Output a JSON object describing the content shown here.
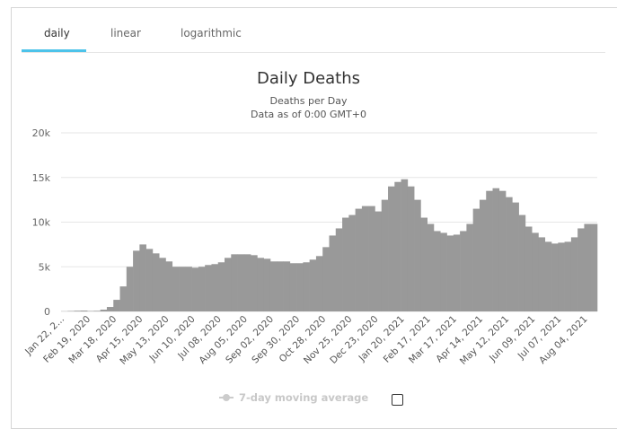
{
  "tabs": [
    {
      "label": "daily",
      "active": true
    },
    {
      "label": "linear",
      "active": false
    },
    {
      "label": "logarithmic",
      "active": false
    }
  ],
  "accent_color": "#4dc3ea",
  "legend": {
    "label": "7-day moving average",
    "enabled": false,
    "checkbox_checked": false
  },
  "chart_data": {
    "type": "bar",
    "title": "Daily Deaths",
    "subtitle": "Deaths per Day",
    "subtitle2": "Data as of 0:00 GMT+0",
    "xlabel": "",
    "ylabel": "",
    "ylim": [
      0,
      20000
    ],
    "yticks": [
      {
        "value": 0,
        "label": "0"
      },
      {
        "value": 5000,
        "label": "5k"
      },
      {
        "value": 10000,
        "label": "10k"
      },
      {
        "value": 15000,
        "label": "15k"
      },
      {
        "value": 20000,
        "label": "20k"
      }
    ],
    "grid": true,
    "bar_color": "#999999",
    "resolution_note_visible": false,
    "xtick_labels": [
      "Jan 22, 2...",
      "Feb 19, 2020",
      "Mar 18, 2020",
      "Apr 15, 2020",
      "May 13, 2020",
      "Jun 10, 2020",
      "Jul 08, 2020",
      "Aug 05, 2020",
      "Sep 02, 2020",
      "Sep 30, 2020",
      "Oct 28, 2020",
      "Nov 25, 2020",
      "Dec 23, 2020",
      "Jan 20, 2021",
      "Feb 17, 2021",
      "Mar 17, 2021",
      "Apr 14, 2021",
      "May 12, 2021",
      "Jun 09, 2021",
      "Jul 07, 2021",
      "Aug 04, 2021"
    ],
    "weeks_start": "Jan 22, 2020",
    "values": [
      20,
      50,
      80,
      100,
      50,
      70,
      200,
      500,
      1300,
      2800,
      5000,
      6800,
      7500,
      7000,
      6500,
      6000,
      5600,
      5000,
      5000,
      5000,
      4900,
      5000,
      5200,
      5300,
      5500,
      6000,
      6400,
      6400,
      6400,
      6300,
      6000,
      5900,
      5600,
      5600,
      5600,
      5400,
      5400,
      5500,
      5800,
      6200,
      7200,
      8500,
      9300,
      10500,
      10800,
      11500,
      11800,
      11800,
      11200,
      12500,
      14000,
      14500,
      14800,
      14000,
      12500,
      10500,
      9800,
      9000,
      8800,
      8500,
      8600,
      9000,
      9800,
      11500,
      12500,
      13500,
      13800,
      13500,
      12800,
      12200,
      10800,
      9500,
      8800,
      8300,
      7800,
      7600,
      7700,
      7800,
      8300,
      9300,
      9800,
      9800
    ]
  }
}
